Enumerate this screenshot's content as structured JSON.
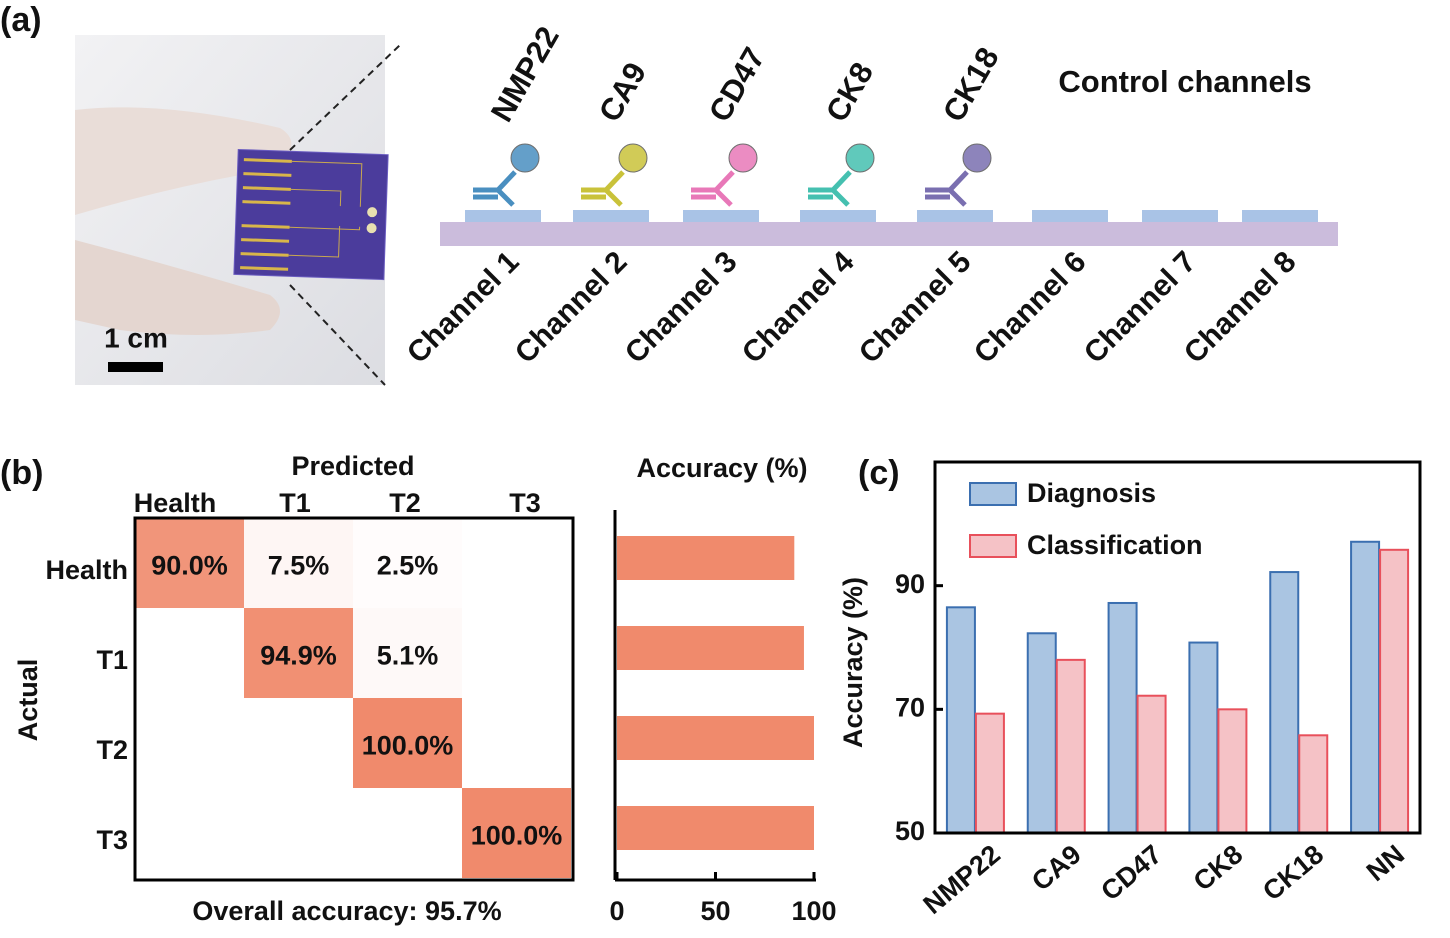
{
  "panel_labels": [
    "(a)",
    "(b)",
    "(c)"
  ],
  "schematic": {
    "scale_bar": "1 cm",
    "biomarkers": [
      "NMP22",
      "CA9",
      "CD47",
      "CK8",
      "CK18"
    ],
    "biomarker_colors": [
      "#4a8fc0",
      "#c9c23a",
      "#e878b8",
      "#45c0b0",
      "#7a6fb0"
    ],
    "control_label": "Control channels",
    "channels": [
      "Channel 1",
      "Channel 2",
      "Channel 3",
      "Channel 4",
      "Channel 5",
      "Channel 6",
      "Channel 7",
      "Channel 8"
    ]
  },
  "chart_data": [
    {
      "type": "heatmap",
      "x_label": "Predicted",
      "y_label": "Actual",
      "x_categories": [
        "Health",
        "T1",
        "T2",
        "T3"
      ],
      "y_categories": [
        "Health",
        "T1",
        "T2",
        "T3"
      ],
      "values": [
        [
          90.0,
          7.5,
          2.5,
          0
        ],
        [
          0,
          94.9,
          5.1,
          0
        ],
        [
          0,
          0,
          100.0,
          0
        ],
        [
          0,
          0,
          0,
          100.0
        ]
      ],
      "value_labels": [
        [
          "90.0%",
          "7.5%",
          "2.5%",
          null
        ],
        [
          null,
          "94.9%",
          "5.1%",
          null
        ],
        [
          null,
          null,
          "100.0%",
          null
        ],
        [
          null,
          null,
          null,
          "100.0%"
        ]
      ],
      "color": "#f08a6c",
      "annotation": "Overall accuracy: 95.7%"
    },
    {
      "type": "hbar",
      "title": "Accuracy  (%)",
      "values": [
        90.0,
        94.9,
        100.0,
        100.0
      ],
      "color": "#f08a6c",
      "xlim": [
        0,
        100
      ],
      "xticks": [
        0,
        50,
        100
      ]
    },
    {
      "type": "bar",
      "y_label": "Accuracy (%)",
      "categories": [
        "NMP22",
        "CA9",
        "CD47",
        "CK8",
        "CK18",
        "NN"
      ],
      "series": [
        {
          "name": "Diagnosis",
          "color": "#aac5e2",
          "edge": "#3b6fb0",
          "values": [
            86.5,
            82.3,
            87.2,
            80.8,
            92.2,
            97.1
          ]
        },
        {
          "name": "Classification",
          "color": "#f5c2c6",
          "edge": "#e8505b",
          "values": [
            69.3,
            78.0,
            72.2,
            70.0,
            65.8,
            95.8
          ]
        }
      ],
      "ylim": [
        50,
        110
      ],
      "yticks": [
        50,
        70,
        90
      ],
      "legend": "upper left"
    }
  ]
}
